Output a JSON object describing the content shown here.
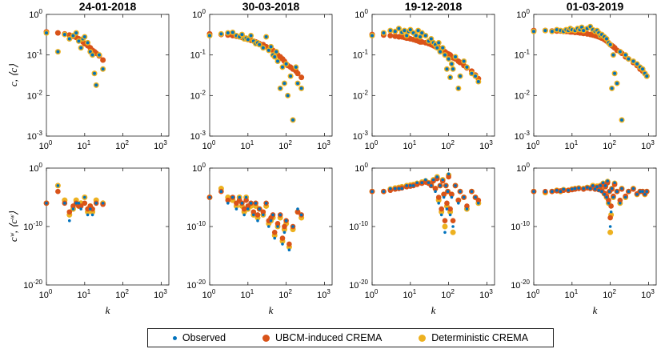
{
  "chart_data": {
    "type": "scatter",
    "colors": {
      "observed": "#0072BD",
      "ubcm": "#D95319",
      "deterministic": "#EDB120"
    },
    "legend": {
      "observed": "Observed",
      "ubcm": "UBCM-induced CREMA",
      "deterministic": "Deterministic CREMA"
    },
    "rows": [
      {
        "ylabel": "c, ⟨c⟩",
        "yticks": [
          "10",
          "10",
          "10",
          "10"
        ],
        "ytick_exp": [
          "0",
          "-1",
          "-2",
          "-3"
        ],
        "ylim_log10": [
          -3,
          0
        ]
      },
      {
        "ylabel": "cʷ, ⟨cʷ⟩",
        "yticks": [
          "10",
          "10",
          "10"
        ],
        "ytick_exp": [
          "0",
          "-10",
          "-20"
        ],
        "ylim_log10": [
          -20,
          0
        ]
      }
    ],
    "xlabel": "k",
    "xticks": [
      "10",
      "10",
      "10",
      "10"
    ],
    "xtick_exp": [
      "0",
      "1",
      "2",
      "3"
    ],
    "xlim_log10": [
      0,
      3.2
    ],
    "panels": [
      {
        "title": "24-01-2018",
        "top_k": [
          1,
          2,
          3,
          4,
          5,
          6,
          7,
          8,
          9,
          10,
          12,
          14,
          16,
          18,
          20,
          24,
          30
        ],
        "top_obs": [
          0.35,
          0.12,
          0.32,
          0.25,
          0.3,
          0.35,
          0.22,
          0.15,
          0.25,
          0.28,
          0.2,
          0.12,
          0.1,
          0.035,
          0.018,
          0.1,
          0.045
        ],
        "top_ubcm": [
          0.37,
          0.35,
          0.33,
          0.31,
          0.29,
          0.27,
          0.25,
          0.23,
          0.21,
          0.19,
          0.17,
          0.15,
          0.13,
          0.12,
          0.11,
          0.095,
          0.075
        ],
        "bot_k": [
          1,
          2,
          3,
          4,
          5,
          6,
          7,
          8,
          10,
          12,
          14,
          16,
          20,
          30
        ],
        "bot_obs": [
          -6,
          -3,
          -6,
          -9,
          -7,
          -6,
          -6,
          -7,
          -5,
          -8,
          -7,
          -8,
          -6,
          -6
        ],
        "bot_ubcm": [
          -6,
          -4,
          -6,
          -7.5,
          -6.5,
          -6,
          -6.5,
          -6.5,
          -6,
          -7,
          -6.5,
          -7,
          -6,
          -6.2
        ],
        "bot_det": [
          -6,
          -3,
          -5.5,
          -8,
          -7,
          -5.5,
          -6.5,
          -6,
          -5,
          -7.5,
          -6.5,
          -7.5,
          -5.5,
          -6
        ]
      },
      {
        "title": "30-03-2018",
        "top_k": [
          1,
          2,
          3,
          4,
          5,
          6,
          7,
          8,
          9,
          10,
          12,
          14,
          16,
          18,
          20,
          25,
          30,
          35,
          40,
          45,
          50,
          55,
          60,
          70,
          80,
          90,
          100,
          110,
          130,
          150,
          180,
          200,
          250
        ],
        "top_obs": [
          0.3,
          0.33,
          0.35,
          0.36,
          0.3,
          0.28,
          0.32,
          0.25,
          0.26,
          0.24,
          0.3,
          0.22,
          0.19,
          0.2,
          0.18,
          0.15,
          0.28,
          0.13,
          0.16,
          0.1,
          0.09,
          0.12,
          0.07,
          0.015,
          0.05,
          0.02,
          0.06,
          0.01,
          0.03,
          0.0025,
          0.05,
          0.02,
          0.015
        ],
        "top_ubcm": [
          0.33,
          0.32,
          0.31,
          0.3,
          0.29,
          0.28,
          0.27,
          0.26,
          0.25,
          0.24,
          0.23,
          0.22,
          0.21,
          0.2,
          0.19,
          0.18,
          0.16,
          0.15,
          0.14,
          0.13,
          0.12,
          0.11,
          0.1,
          0.09,
          0.08,
          0.07,
          0.06,
          0.055,
          0.05,
          0.045,
          0.04,
          0.035,
          0.028
        ],
        "bot_k": [
          1,
          2,
          3,
          4,
          5,
          6,
          7,
          8,
          9,
          10,
          12,
          14,
          16,
          18,
          20,
          25,
          30,
          35,
          40,
          45,
          50,
          60,
          70,
          80,
          90,
          100,
          120,
          150,
          200,
          250
        ],
        "bot_obs": [
          -5,
          -4,
          -6,
          -5,
          -7,
          -5,
          -6,
          -8,
          -5,
          -7,
          -6,
          -8,
          -6,
          -9,
          -7,
          -8,
          -6,
          -10,
          -9,
          -8,
          -12,
          -10,
          -8,
          -13,
          -11,
          -9,
          -14,
          -10,
          -7,
          -8
        ],
        "bot_ubcm": [
          -5,
          -4,
          -5.5,
          -5,
          -6,
          -5.5,
          -6,
          -7,
          -5.5,
          -6.5,
          -6,
          -7.5,
          -6,
          -8,
          -7,
          -7.5,
          -6,
          -9,
          -8.5,
          -8,
          -11,
          -9.5,
          -8,
          -12,
          -10,
          -9,
          -13,
          -10,
          -7.5,
          -8
        ],
        "bot_det": [
          -5,
          -3.5,
          -5,
          -5.5,
          -6.5,
          -5,
          -6.5,
          -7.5,
          -5,
          -7,
          -6.5,
          -8,
          -6.5,
          -8.5,
          -7,
          -8,
          -6.5,
          -9.5,
          -9,
          -8.5,
          -11.5,
          -10,
          -8.5,
          -12.5,
          -10.5,
          -9.5,
          -13.5,
          -10.5,
          -7.5,
          -8.5
        ]
      },
      {
        "title": "19-12-2018",
        "top_k": [
          1,
          2,
          3,
          4,
          5,
          6,
          7,
          8,
          9,
          10,
          12,
          14,
          16,
          18,
          20,
          25,
          30,
          35,
          40,
          45,
          50,
          55,
          60,
          70,
          80,
          90,
          100,
          110,
          120,
          130,
          150,
          180,
          200,
          250,
          300,
          400,
          500,
          600
        ],
        "top_obs": [
          0.3,
          0.35,
          0.4,
          0.38,
          0.45,
          0.36,
          0.4,
          0.3,
          0.38,
          0.42,
          0.35,
          0.3,
          0.4,
          0.28,
          0.35,
          0.3,
          0.22,
          0.25,
          0.2,
          0.18,
          0.15,
          0.2,
          0.12,
          0.15,
          0.1,
          0.045,
          0.08,
          0.028,
          0.06,
          0.045,
          0.09,
          0.015,
          0.03,
          0.07,
          0.05,
          0.035,
          0.03,
          0.022
        ],
        "top_ubcm": [
          0.32,
          0.31,
          0.3,
          0.29,
          0.28,
          0.28,
          0.27,
          0.26,
          0.26,
          0.25,
          0.24,
          0.23,
          0.22,
          0.21,
          0.21,
          0.2,
          0.19,
          0.18,
          0.17,
          0.16,
          0.155,
          0.15,
          0.14,
          0.13,
          0.12,
          0.11,
          0.105,
          0.1,
          0.09,
          0.085,
          0.08,
          0.07,
          0.065,
          0.055,
          0.048,
          0.04,
          0.032,
          0.026
        ],
        "bot_k": [
          1,
          2,
          3,
          4,
          5,
          6,
          8,
          10,
          12,
          15,
          20,
          25,
          30,
          35,
          40,
          45,
          50,
          55,
          60,
          65,
          70,
          75,
          80,
          85,
          90,
          95,
          100,
          110,
          120,
          130,
          150,
          180,
          200,
          250,
          300,
          400,
          500,
          600
        ],
        "bot_obs": [
          -4,
          -4,
          -3.5,
          -3.5,
          -3.5,
          -3.5,
          -3,
          -3,
          -3,
          -2.5,
          -2.5,
          -2,
          -2.5,
          -3,
          -2,
          -4,
          -1.5,
          -6,
          -3,
          -8,
          -2,
          -5,
          -11,
          -3,
          -7,
          -4,
          -1,
          -8,
          -5,
          -10,
          -3,
          -6,
          -4,
          -5,
          -7,
          -4,
          -5,
          -6
        ],
        "bot_ubcm": [
          -4,
          -4,
          -3.8,
          -3.6,
          -3.5,
          -3.4,
          -3.2,
          -3.1,
          -3,
          -2.8,
          -2.6,
          -2.4,
          -2.6,
          -3,
          -2.2,
          -3.5,
          -1.8,
          -5,
          -3,
          -7,
          -2.2,
          -4.5,
          -9,
          -3,
          -6,
          -4,
          -1.5,
          -7,
          -4.5,
          -9,
          -3,
          -5.5,
          -4,
          -5,
          -6.5,
          -4,
          -5,
          -5.5
        ],
        "bot_det": [
          -4,
          -4,
          -3.6,
          -3.4,
          -3.3,
          -3.2,
          -3,
          -2.9,
          -2.8,
          -2.6,
          -2.4,
          -2.2,
          -2.5,
          -2.8,
          -2,
          -3.5,
          -1.5,
          -5.5,
          -3,
          -7.5,
          -2,
          -4.5,
          -10,
          -3,
          -6.5,
          -4,
          -1.2,
          -7.5,
          -4.5,
          -11,
          -3,
          -5.5,
          -4,
          -5,
          -7,
          -4,
          -5,
          -6
        ]
      },
      {
        "title": "01-03-2019",
        "top_k": [
          1,
          2,
          3,
          4,
          5,
          6,
          7,
          8,
          9,
          10,
          12,
          14,
          16,
          18,
          20,
          25,
          30,
          35,
          40,
          45,
          50,
          55,
          60,
          70,
          80,
          90,
          100,
          110,
          120,
          130,
          150,
          180,
          200,
          250,
          300,
          400,
          500,
          600,
          700,
          800,
          900
        ],
        "top_obs": [
          0.38,
          0.4,
          0.38,
          0.42,
          0.4,
          0.38,
          0.42,
          0.4,
          0.45,
          0.42,
          0.4,
          0.45,
          0.42,
          0.48,
          0.4,
          0.45,
          0.5,
          0.42,
          0.38,
          0.4,
          0.35,
          0.3,
          0.32,
          0.28,
          0.25,
          0.2,
          0.18,
          0.015,
          0.1,
          0.035,
          0.02,
          0.12,
          0.0025,
          0.1,
          0.08,
          0.07,
          0.06,
          0.05,
          0.045,
          0.035,
          0.03
        ],
        "top_ubcm": [
          0.4,
          0.4,
          0.39,
          0.39,
          0.39,
          0.38,
          0.38,
          0.38,
          0.37,
          0.37,
          0.36,
          0.36,
          0.35,
          0.35,
          0.34,
          0.33,
          0.32,
          0.31,
          0.3,
          0.29,
          0.28,
          0.27,
          0.26,
          0.24,
          0.22,
          0.2,
          0.18,
          0.17,
          0.16,
          0.15,
          0.13,
          0.12,
          0.11,
          0.09,
          0.08,
          0.065,
          0.055,
          0.045,
          0.04,
          0.035,
          0.03
        ],
        "bot_k": [
          1,
          2,
          3,
          4,
          5,
          6,
          8,
          10,
          12,
          15,
          20,
          25,
          30,
          35,
          40,
          45,
          50,
          55,
          60,
          65,
          70,
          75,
          80,
          85,
          90,
          95,
          100,
          105,
          110,
          120,
          130,
          150,
          180,
          200,
          250,
          300,
          400,
          500,
          600,
          700,
          800,
          900
        ],
        "bot_obs": [
          -4,
          -4,
          -4,
          -3.8,
          -4,
          -3.6,
          -3.8,
          -3.6,
          -3.5,
          -3.4,
          -3.5,
          -3.3,
          -3.5,
          -3,
          -3.6,
          -3.2,
          -3.8,
          -3,
          -4,
          -2.5,
          -4.5,
          -3,
          -5,
          -2.2,
          -6,
          -4,
          -10,
          -7.5,
          -3.5,
          -5,
          -2.5,
          -4,
          -6,
          -3.5,
          -5,
          -4,
          -3.5,
          -4.5,
          -4,
          -4,
          -4.5,
          -4
        ],
        "bot_ubcm": [
          -4,
          -4,
          -4,
          -3.9,
          -3.9,
          -3.8,
          -3.8,
          -3.7,
          -3.6,
          -3.5,
          -3.6,
          -3.4,
          -3.5,
          -3.2,
          -3.6,
          -3.3,
          -3.7,
          -3.1,
          -3.9,
          -2.8,
          -4.3,
          -3.2,
          -4.8,
          -2.5,
          -5.5,
          -4,
          -8.5,
          -6.5,
          -3.6,
          -4.8,
          -2.8,
          -4,
          -5.5,
          -3.6,
          -4.8,
          -4,
          -3.6,
          -4.4,
          -4,
          -4,
          -4.4,
          -4
        ],
        "bot_det": [
          -4,
          -4.2,
          -4,
          -3.8,
          -4,
          -3.7,
          -3.8,
          -3.6,
          -3.5,
          -3.4,
          -3.5,
          -3.3,
          -3.4,
          -3,
          -3.5,
          -3.1,
          -3.6,
          -3,
          -3.8,
          -2.6,
          -4.4,
          -3,
          -5,
          -2.3,
          -6,
          -4,
          -11,
          -8,
          -3.5,
          -5,
          -2.6,
          -4,
          -6,
          -3.5,
          -5,
          -4,
          -3.5,
          -4.5,
          -4,
          -4,
          -4.5,
          -4
        ]
      }
    ]
  }
}
